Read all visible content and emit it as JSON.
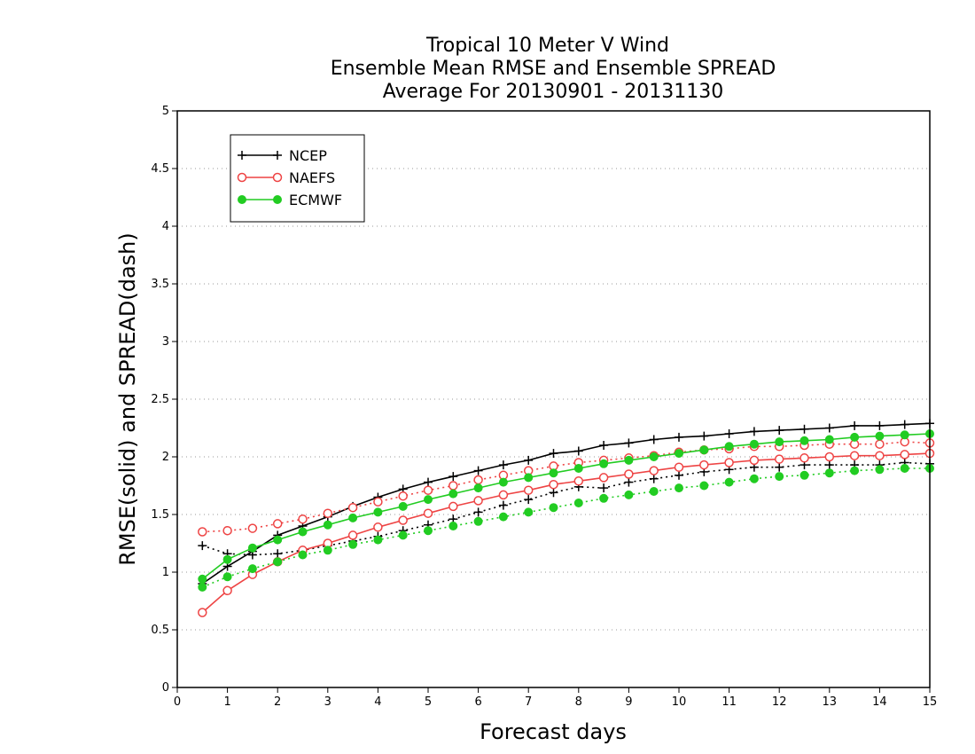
{
  "chart_data": {
    "type": "line",
    "title_lines": [
      "Tropical 10 Meter V Wind",
      "Ensemble Mean RMSE and Ensemble SPREAD",
      "Average For 20130901 - 20131130"
    ],
    "xlabel": "Forecast days",
    "ylabel": "RMSE(solid) and SPREAD(dash)",
    "xlim": [
      0,
      15
    ],
    "ylim": [
      0,
      5
    ],
    "x_ticks": [
      "0",
      "1",
      "2",
      "3",
      "4",
      "5",
      "6",
      "7",
      "8",
      "9",
      "10",
      "11",
      "12",
      "13",
      "14",
      "15"
    ],
    "y_ticks": [
      "0",
      "0.5",
      "1",
      "1.5",
      "2",
      "2.5",
      "3",
      "3.5",
      "4",
      "4.5",
      "5"
    ],
    "grid": "dotted horizontal",
    "legend_position": "top-left",
    "x": [
      0.5,
      1,
      1.5,
      2,
      2.5,
      3,
      3.5,
      4,
      4.5,
      5,
      5.5,
      6,
      6.5,
      7,
      7.5,
      8,
      8.5,
      9,
      9.5,
      10,
      10.5,
      11,
      11.5,
      12,
      12.5,
      13,
      13.5,
      14,
      14.5,
      15
    ],
    "series": [
      {
        "name": "NCEP",
        "color": "#000000",
        "marker": "plus",
        "rmse": [
          0.9,
          1.05,
          1.18,
          1.32,
          1.4,
          1.48,
          1.57,
          1.65,
          1.72,
          1.78,
          1.83,
          1.88,
          1.93,
          1.97,
          2.03,
          2.05,
          2.1,
          2.12,
          2.15,
          2.17,
          2.18,
          2.2,
          2.22,
          2.23,
          2.24,
          2.25,
          2.27,
          2.27,
          2.28,
          2.29
        ],
        "spread": [
          1.23,
          1.16,
          1.15,
          1.16,
          1.19,
          1.23,
          1.27,
          1.31,
          1.36,
          1.41,
          1.46,
          1.52,
          1.58,
          1.63,
          1.69,
          1.74,
          1.73,
          1.78,
          1.81,
          1.84,
          1.87,
          1.89,
          1.91,
          1.91,
          1.93,
          1.93,
          1.93,
          1.93,
          1.95,
          1.94
        ]
      },
      {
        "name": "NAEFS",
        "color": "#ee4444",
        "marker": "open-circle",
        "rmse": [
          0.65,
          0.84,
          0.98,
          1.09,
          1.19,
          1.25,
          1.32,
          1.39,
          1.45,
          1.51,
          1.57,
          1.62,
          1.67,
          1.71,
          1.76,
          1.79,
          1.82,
          1.85,
          1.88,
          1.91,
          1.93,
          1.95,
          1.97,
          1.98,
          1.99,
          2.0,
          2.01,
          2.01,
          2.02,
          2.03
        ],
        "spread": [
          1.35,
          1.36,
          1.38,
          1.42,
          1.46,
          1.51,
          1.56,
          1.61,
          1.66,
          1.71,
          1.75,
          1.8,
          1.84,
          1.88,
          1.92,
          1.95,
          1.97,
          1.99,
          2.01,
          2.04,
          2.06,
          2.07,
          2.09,
          2.09,
          2.1,
          2.11,
          2.11,
          2.11,
          2.13,
          2.12
        ]
      },
      {
        "name": "ECMWF",
        "color": "#22cc22",
        "marker": "filled-circle",
        "rmse": [
          0.94,
          1.11,
          1.21,
          1.28,
          1.35,
          1.41,
          1.47,
          1.52,
          1.57,
          1.63,
          1.68,
          1.73,
          1.78,
          1.82,
          1.86,
          1.9,
          1.94,
          1.97,
          2.0,
          2.03,
          2.06,
          2.09,
          2.11,
          2.13,
          2.14,
          2.15,
          2.17,
          2.18,
          2.19,
          2.2
        ],
        "spread": [
          0.87,
          0.96,
          1.03,
          1.09,
          1.15,
          1.19,
          1.24,
          1.28,
          1.32,
          1.36,
          1.4,
          1.44,
          1.48,
          1.52,
          1.56,
          1.6,
          1.64,
          1.67,
          1.7,
          1.73,
          1.75,
          1.78,
          1.81,
          1.83,
          1.84,
          1.86,
          1.88,
          1.89,
          1.9,
          1.9
        ]
      }
    ]
  }
}
